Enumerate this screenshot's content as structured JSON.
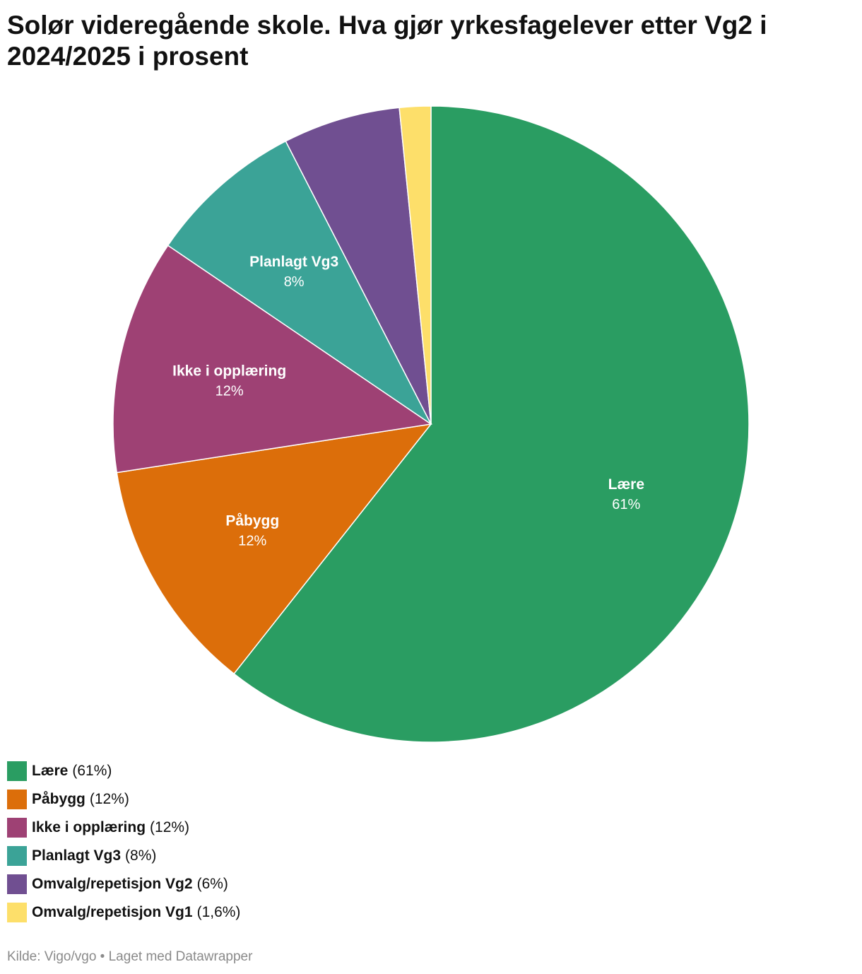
{
  "chart_data": {
    "type": "pie",
    "title": "Solør videregående skole. Hva gjør yrkesfagelever etter Vg2 i 2024/2025 i prosent",
    "slices": [
      {
        "name": "Lære",
        "value": 61,
        "value_label": "61%",
        "legend_value": "(61%)",
        "color": "#2a9d62",
        "show_label": true
      },
      {
        "name": "Påbygg",
        "value": 12,
        "value_label": "12%",
        "legend_value": "(12%)",
        "color": "#dc6e0a",
        "show_label": true
      },
      {
        "name": "Ikke i opplæring",
        "value": 12,
        "value_label": "12%",
        "legend_value": "(12%)",
        "color": "#9e4174",
        "show_label": true
      },
      {
        "name": "Planlagt Vg3",
        "value": 8,
        "value_label": "8%",
        "legend_value": "(8%)",
        "color": "#3ba397",
        "show_label": true
      },
      {
        "name": "Omvalg/repetisjon Vg2",
        "value": 6,
        "value_label": "6%",
        "legend_value": "(6%)",
        "color": "#704f91",
        "show_label": false
      },
      {
        "name": "Omvalg/repetisjon Vg1",
        "value": 1.6,
        "value_label": "1,6%",
        "legend_value": "(1,6%)",
        "color": "#fddf6a",
        "show_label": false
      }
    ],
    "legend_placement": "bottom-left"
  },
  "source_text": "Kilde: Vigo/vgo • Laget med Datawrapper"
}
